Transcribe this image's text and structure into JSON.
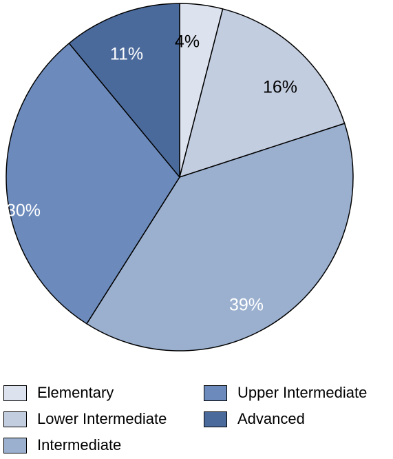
{
  "chart_data": {
    "type": "pie",
    "title": "",
    "series": [
      {
        "name": "Elementary",
        "value": 4,
        "label": "4%",
        "color": "#dce3ef",
        "label_color": "#000000"
      },
      {
        "name": "Lower Intermediate",
        "value": 16,
        "label": "16%",
        "color": "#c3cde0",
        "label_color": "#000000"
      },
      {
        "name": "Intermediate",
        "value": 39,
        "label": "39%",
        "color": "#9bb0cf",
        "label_color": "#ffffff"
      },
      {
        "name": "Upper Intermediate",
        "value": 30,
        "label": "30%",
        "color": "#6c8bbc",
        "label_color": "#ffffff"
      },
      {
        "name": "Advanced",
        "value": 11,
        "label": "11%",
        "color": "#4b6a9c",
        "label_color": "#ffffff"
      }
    ],
    "start_angle": "12 o'clock",
    "direction": "clockwise",
    "legend_position": "bottom"
  }
}
